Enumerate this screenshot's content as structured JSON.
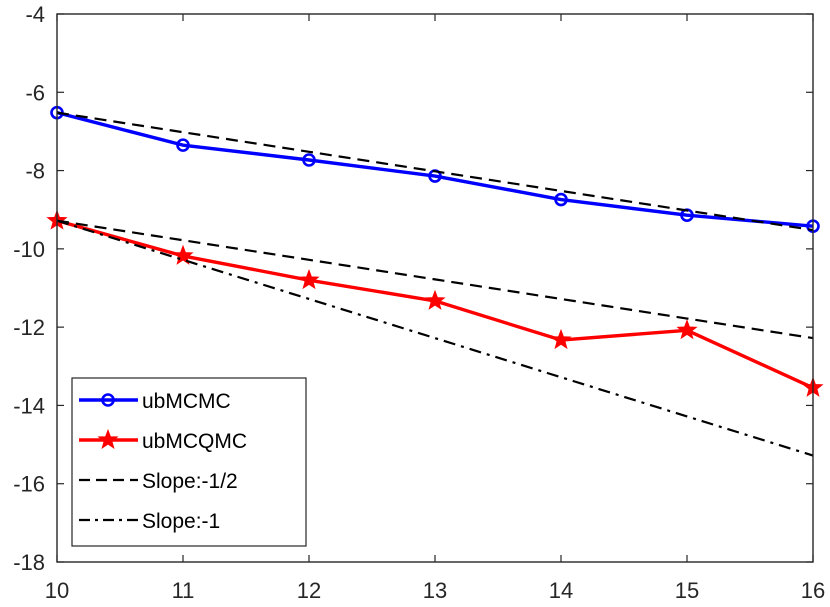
{
  "chart_data": {
    "type": "line",
    "title": "",
    "xlabel": "",
    "ylabel": "",
    "xlim": [
      10,
      16
    ],
    "ylim": [
      -18,
      -4
    ],
    "xticks": [
      10,
      11,
      12,
      13,
      14,
      15,
      16
    ],
    "yticks": [
      -18,
      -16,
      -14,
      -12,
      -10,
      -8,
      -6,
      -4
    ],
    "x": [
      10,
      11,
      12,
      13,
      14,
      15,
      16
    ],
    "legend_position": "bottom-left",
    "series": [
      {
        "name": "ubMCMC",
        "values": [
          -6.52,
          -7.35,
          -7.73,
          -8.14,
          -8.74,
          -9.14,
          -9.42
        ],
        "color": "#0000ff",
        "marker": "circle",
        "dash": "solid"
      },
      {
        "name": "ubMCQMC",
        "values": [
          -9.28,
          -10.18,
          -10.8,
          -11.33,
          -12.33,
          -12.08,
          -13.55
        ],
        "color": "#ff0000",
        "marker": "star",
        "dash": "solid"
      },
      {
        "name": "Slope:-1/2",
        "values": [
          -6.52,
          -7.02,
          -7.52,
          -8.02,
          -8.52,
          -9.02,
          -9.52
        ],
        "color": "#000000",
        "marker": "none",
        "dash": "dashed"
      },
      {
        "name": "Slope:-1/2",
        "values": [
          -9.28,
          -9.78,
          -10.28,
          -10.78,
          -11.28,
          -11.78,
          -12.28
        ],
        "color": "#000000",
        "marker": "none",
        "dash": "dashed",
        "in_legend": false
      },
      {
        "name": "Slope:-1",
        "values": [
          -9.28,
          -10.28,
          -11.28,
          -12.28,
          -13.28,
          -14.28,
          -15.28
        ],
        "color": "#000000",
        "marker": "none",
        "dash": "dashdot"
      }
    ]
  }
}
